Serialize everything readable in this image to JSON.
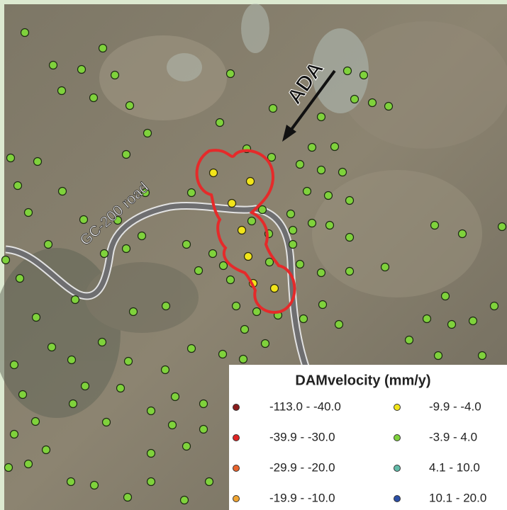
{
  "map": {
    "labels": {
      "arrow": "ADA",
      "road": "GC-200 road"
    },
    "legend": {
      "title": "DAMvelocity (mm/y)",
      "items": [
        {
          "label": "-113.0 - -40.0",
          "color": "#8b1c1c"
        },
        {
          "label": "-39.9 - -30.0",
          "color": "#e02424"
        },
        {
          "label": "-29.9 - -20.0",
          "color": "#e8642e"
        },
        {
          "label": "-19.9 - -10.0",
          "color": "#f0a532"
        },
        {
          "label": "-9.9 - -4.0",
          "color": "#f2e51a"
        },
        {
          "label": "-3.9 - 4.0",
          "color": "#7fd23c"
        },
        {
          "label": "4.1 - 10.0",
          "color": "#62bba9"
        },
        {
          "label": "10.1 - 20.0",
          "color": "#2b4fa6"
        }
      ]
    }
  }
}
